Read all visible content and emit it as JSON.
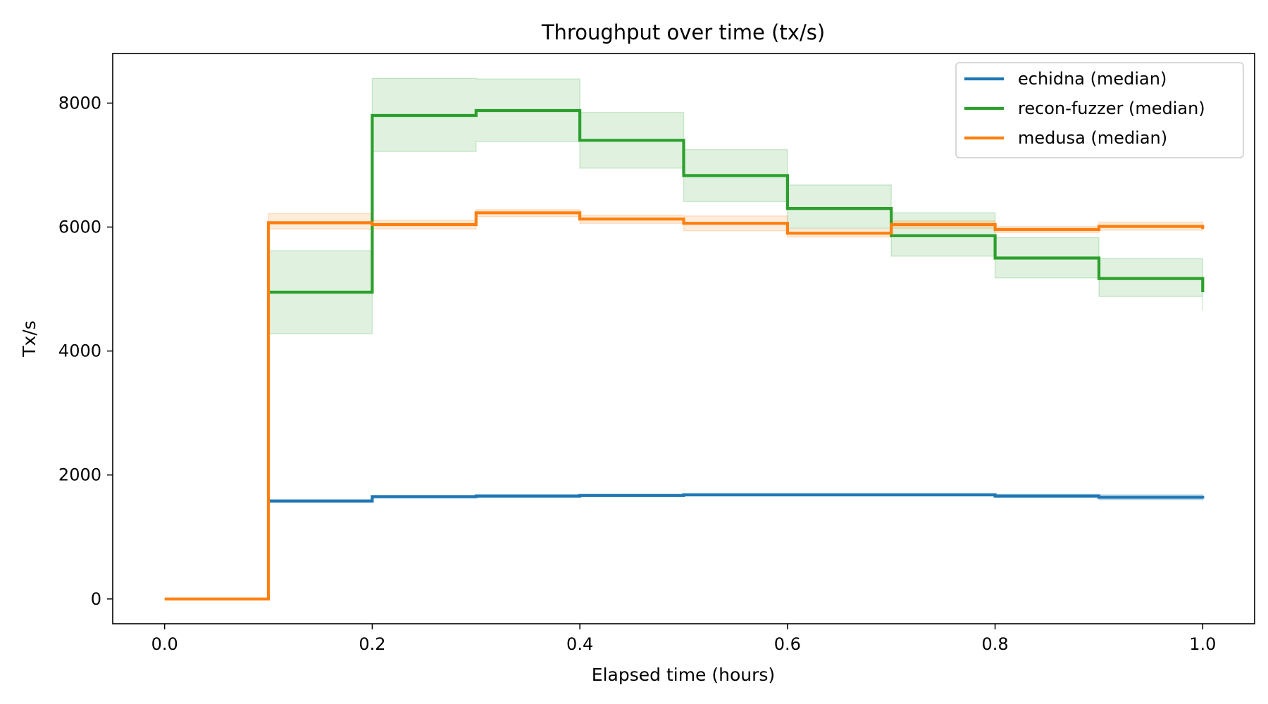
{
  "chart_data": {
    "type": "line",
    "title": "Throughput over time (tx/s)",
    "xlabel": "Elapsed time (hours)",
    "ylabel": "Tx/s",
    "xlim": [
      -0.05,
      1.05
    ],
    "ylim": [
      -400,
      8800
    ],
    "xticks": [
      0.0,
      0.2,
      0.4,
      0.6,
      0.8,
      1.0
    ],
    "xtick_labels": [
      "0.0",
      "0.2",
      "0.4",
      "0.6",
      "0.8",
      "1.0"
    ],
    "yticks": [
      0,
      2000,
      4000,
      6000,
      8000
    ],
    "ytick_labels": [
      "0",
      "2000",
      "4000",
      "6000",
      "8000"
    ],
    "grid": false,
    "legend_position": "top-right",
    "step": "post",
    "x": [
      0.1,
      0.2,
      0.3,
      0.4,
      0.5,
      0.6,
      0.7,
      0.8,
      0.9,
      1.0
    ],
    "series": [
      {
        "name": "echidna (median)",
        "color": "#1f77b4",
        "x": [
          0.1,
          0.2,
          0.3,
          0.4,
          0.5,
          0.6,
          0.7,
          0.8,
          0.9,
          1.0
        ],
        "values": [
          1580,
          1650,
          1660,
          1670,
          1680,
          1680,
          1680,
          1660,
          1640,
          1620
        ],
        "band_low": [
          1560,
          1630,
          1640,
          1650,
          1660,
          1660,
          1660,
          1640,
          1600,
          1580
        ],
        "band_high": [
          1600,
          1670,
          1680,
          1690,
          1700,
          1700,
          1700,
          1690,
          1680,
          1680
        ]
      },
      {
        "name": "recon-fuzzer (median)",
        "color": "#2ca02c",
        "x": [
          0.1,
          0.2,
          0.3,
          0.4,
          0.5,
          0.6,
          0.7,
          0.8,
          0.9,
          1.0
        ],
        "values": [
          4950,
          7800,
          7880,
          7400,
          6830,
          6300,
          5860,
          5500,
          5170,
          4950
        ],
        "band_low": [
          4280,
          7220,
          7380,
          6950,
          6410,
          5980,
          5530,
          5180,
          4880,
          4650
        ],
        "band_high": [
          5620,
          8400,
          8390,
          7850,
          7250,
          6680,
          6230,
          5830,
          5490,
          5490
        ]
      },
      {
        "name": "medusa (median)",
        "color": "#ff7f0e",
        "x": [
          0.0,
          0.1,
          0.2,
          0.3,
          0.4,
          0.5,
          0.6,
          0.7,
          0.8,
          0.9,
          1.0
        ],
        "values": [
          0,
          6070,
          6040,
          6230,
          6130,
          6060,
          5900,
          6040,
          5960,
          6010,
          5970
        ],
        "band_low": [
          0,
          5970,
          5970,
          6170,
          6060,
          5940,
          5840,
          5980,
          5910,
          5950,
          5930
        ],
        "band_high": [
          0,
          6220,
          6110,
          6280,
          6190,
          6180,
          5960,
          6100,
          6010,
          6080,
          6070
        ]
      }
    ]
  }
}
